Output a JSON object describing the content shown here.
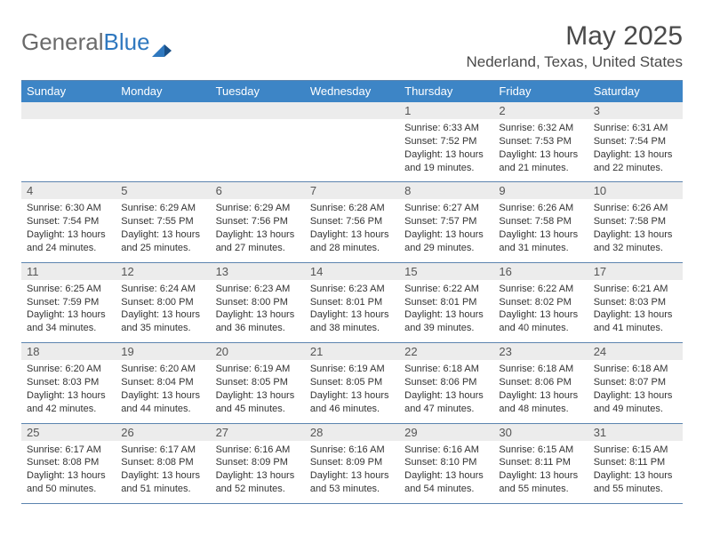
{
  "brand": {
    "part1": "General",
    "part2": "Blue"
  },
  "title": "May 2025",
  "location": "Nederland, Texas, United States",
  "colors": {
    "header_bg": "#3d85c6",
    "numrow_bg": "#ececec",
    "rule": "#5c84af",
    "page_bg": "#ffffff",
    "text": "#333333"
  },
  "calendar": {
    "day_names": [
      "Sunday",
      "Monday",
      "Tuesday",
      "Wednesday",
      "Thursday",
      "Friday",
      "Saturday"
    ],
    "weeks": [
      {
        "nums": [
          "",
          "",
          "",
          "",
          "1",
          "2",
          "3"
        ],
        "details": [
          "",
          "",
          "",
          "",
          "Sunrise: 6:33 AM\nSunset: 7:52 PM\nDaylight: 13 hours and 19 minutes.",
          "Sunrise: 6:32 AM\nSunset: 7:53 PM\nDaylight: 13 hours and 21 minutes.",
          "Sunrise: 6:31 AM\nSunset: 7:54 PM\nDaylight: 13 hours and 22 minutes."
        ]
      },
      {
        "nums": [
          "4",
          "5",
          "6",
          "7",
          "8",
          "9",
          "10"
        ],
        "details": [
          "Sunrise: 6:30 AM\nSunset: 7:54 PM\nDaylight: 13 hours and 24 minutes.",
          "Sunrise: 6:29 AM\nSunset: 7:55 PM\nDaylight: 13 hours and 25 minutes.",
          "Sunrise: 6:29 AM\nSunset: 7:56 PM\nDaylight: 13 hours and 27 minutes.",
          "Sunrise: 6:28 AM\nSunset: 7:56 PM\nDaylight: 13 hours and 28 minutes.",
          "Sunrise: 6:27 AM\nSunset: 7:57 PM\nDaylight: 13 hours and 29 minutes.",
          "Sunrise: 6:26 AM\nSunset: 7:58 PM\nDaylight: 13 hours and 31 minutes.",
          "Sunrise: 6:26 AM\nSunset: 7:58 PM\nDaylight: 13 hours and 32 minutes."
        ]
      },
      {
        "nums": [
          "11",
          "12",
          "13",
          "14",
          "15",
          "16",
          "17"
        ],
        "details": [
          "Sunrise: 6:25 AM\nSunset: 7:59 PM\nDaylight: 13 hours and 34 minutes.",
          "Sunrise: 6:24 AM\nSunset: 8:00 PM\nDaylight: 13 hours and 35 minutes.",
          "Sunrise: 6:23 AM\nSunset: 8:00 PM\nDaylight: 13 hours and 36 minutes.",
          "Sunrise: 6:23 AM\nSunset: 8:01 PM\nDaylight: 13 hours and 38 minutes.",
          "Sunrise: 6:22 AM\nSunset: 8:01 PM\nDaylight: 13 hours and 39 minutes.",
          "Sunrise: 6:22 AM\nSunset: 8:02 PM\nDaylight: 13 hours and 40 minutes.",
          "Sunrise: 6:21 AM\nSunset: 8:03 PM\nDaylight: 13 hours and 41 minutes."
        ]
      },
      {
        "nums": [
          "18",
          "19",
          "20",
          "21",
          "22",
          "23",
          "24"
        ],
        "details": [
          "Sunrise: 6:20 AM\nSunset: 8:03 PM\nDaylight: 13 hours and 42 minutes.",
          "Sunrise: 6:20 AM\nSunset: 8:04 PM\nDaylight: 13 hours and 44 minutes.",
          "Sunrise: 6:19 AM\nSunset: 8:05 PM\nDaylight: 13 hours and 45 minutes.",
          "Sunrise: 6:19 AM\nSunset: 8:05 PM\nDaylight: 13 hours and 46 minutes.",
          "Sunrise: 6:18 AM\nSunset: 8:06 PM\nDaylight: 13 hours and 47 minutes.",
          "Sunrise: 6:18 AM\nSunset: 8:06 PM\nDaylight: 13 hours and 48 minutes.",
          "Sunrise: 6:18 AM\nSunset: 8:07 PM\nDaylight: 13 hours and 49 minutes."
        ]
      },
      {
        "nums": [
          "25",
          "26",
          "27",
          "28",
          "29",
          "30",
          "31"
        ],
        "details": [
          "Sunrise: 6:17 AM\nSunset: 8:08 PM\nDaylight: 13 hours and 50 minutes.",
          "Sunrise: 6:17 AM\nSunset: 8:08 PM\nDaylight: 13 hours and 51 minutes.",
          "Sunrise: 6:16 AM\nSunset: 8:09 PM\nDaylight: 13 hours and 52 minutes.",
          "Sunrise: 6:16 AM\nSunset: 8:09 PM\nDaylight: 13 hours and 53 minutes.",
          "Sunrise: 6:16 AM\nSunset: 8:10 PM\nDaylight: 13 hours and 54 minutes.",
          "Sunrise: 6:15 AM\nSunset: 8:11 PM\nDaylight: 13 hours and 55 minutes.",
          "Sunrise: 6:15 AM\nSunset: 8:11 PM\nDaylight: 13 hours and 55 minutes."
        ]
      }
    ]
  }
}
